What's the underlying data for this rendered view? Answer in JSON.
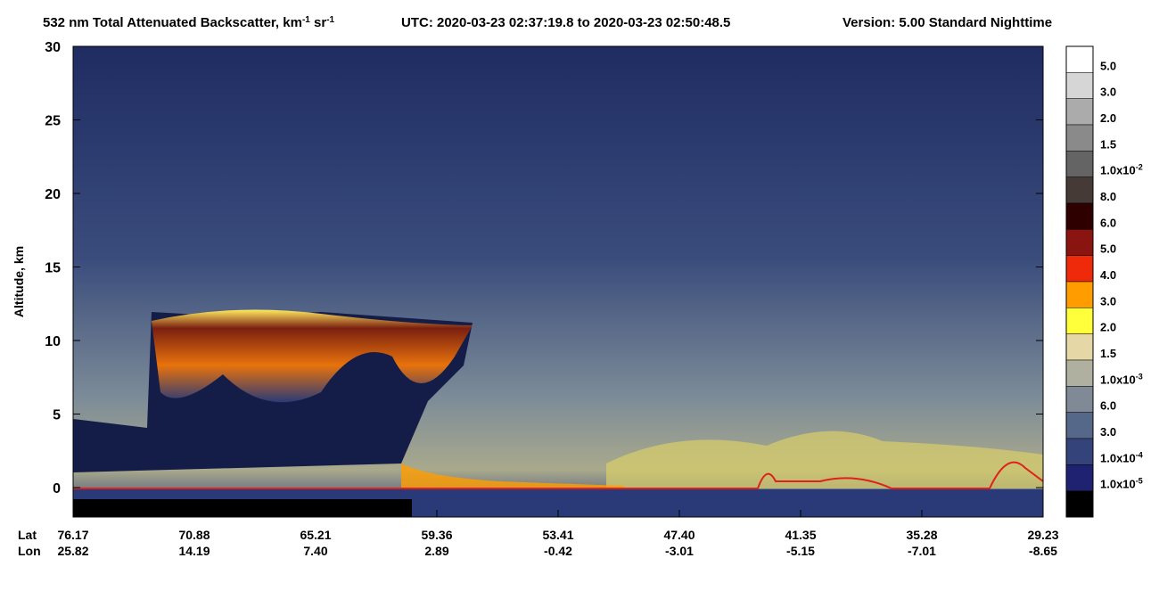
{
  "chart_data": {
    "type": "curtain",
    "title": [
      {
        "text": "532 nm Total Attenuated Backscatter, km"
      },
      {
        "sup": "-1"
      },
      {
        "text": " sr"
      },
      {
        "sup": "-1"
      }
    ],
    "utc": "UTC:  2020-03-23 02:37:19.8  to  2020-03-23 02:50:48.5",
    "version": "Version: 5.00  Standard  Nighttime",
    "ylabel": "Altitude, km",
    "ylim": [
      -2,
      30
    ],
    "yticks": [
      0,
      5,
      10,
      15,
      20,
      25,
      30
    ],
    "row_labels": [
      "Lat",
      "Lon"
    ],
    "lat": [
      "76.17",
      "70.88",
      "65.21",
      "59.36",
      "53.41",
      "47.40",
      "41.35",
      "35.28",
      "29.23"
    ],
    "lon": [
      "25.82",
      "14.19",
      "7.40",
      "2.89",
      "-0.42",
      "-3.01",
      "-5.15",
      "-7.01",
      "-8.65"
    ],
    "colorbar": [
      {
        "text": "5.0",
        "color": "#ffffff"
      },
      {
        "text": "3.0",
        "color": "#d6d6d6"
      },
      {
        "text": "2.0",
        "color": "#ababab"
      },
      {
        "text": "1.5",
        "color": "#8a8a8a"
      },
      {
        "text": "1.0x10",
        "sup": "-2",
        "color": "#646464"
      },
      {
        "text": "8.0",
        "color": "#453a36"
      },
      {
        "text": "6.0",
        "color": "#2e0000"
      },
      {
        "text": "5.0",
        "color": "#8a1410"
      },
      {
        "text": "4.0",
        "color": "#ee2a0a"
      },
      {
        "text": "3.0",
        "color": "#ff9d00"
      },
      {
        "text": "2.0",
        "color": "#ffff3c"
      },
      {
        "text": "1.5",
        "color": "#e6d8a6"
      },
      {
        "text": "1.0x10",
        "sup": "-3",
        "color": "#b0b0a0"
      },
      {
        "text": "6.0",
        "color": "#7f8a96"
      },
      {
        "text": "3.0",
        "color": "#56688a"
      },
      {
        "text": "1.0x10",
        "sup": "-4",
        "color": "#34447a"
      },
      {
        "text": "1.0x10",
        "sup": "-5",
        "color": "#1e2270"
      }
    ],
    "colorbar_floor": "#000000"
  }
}
